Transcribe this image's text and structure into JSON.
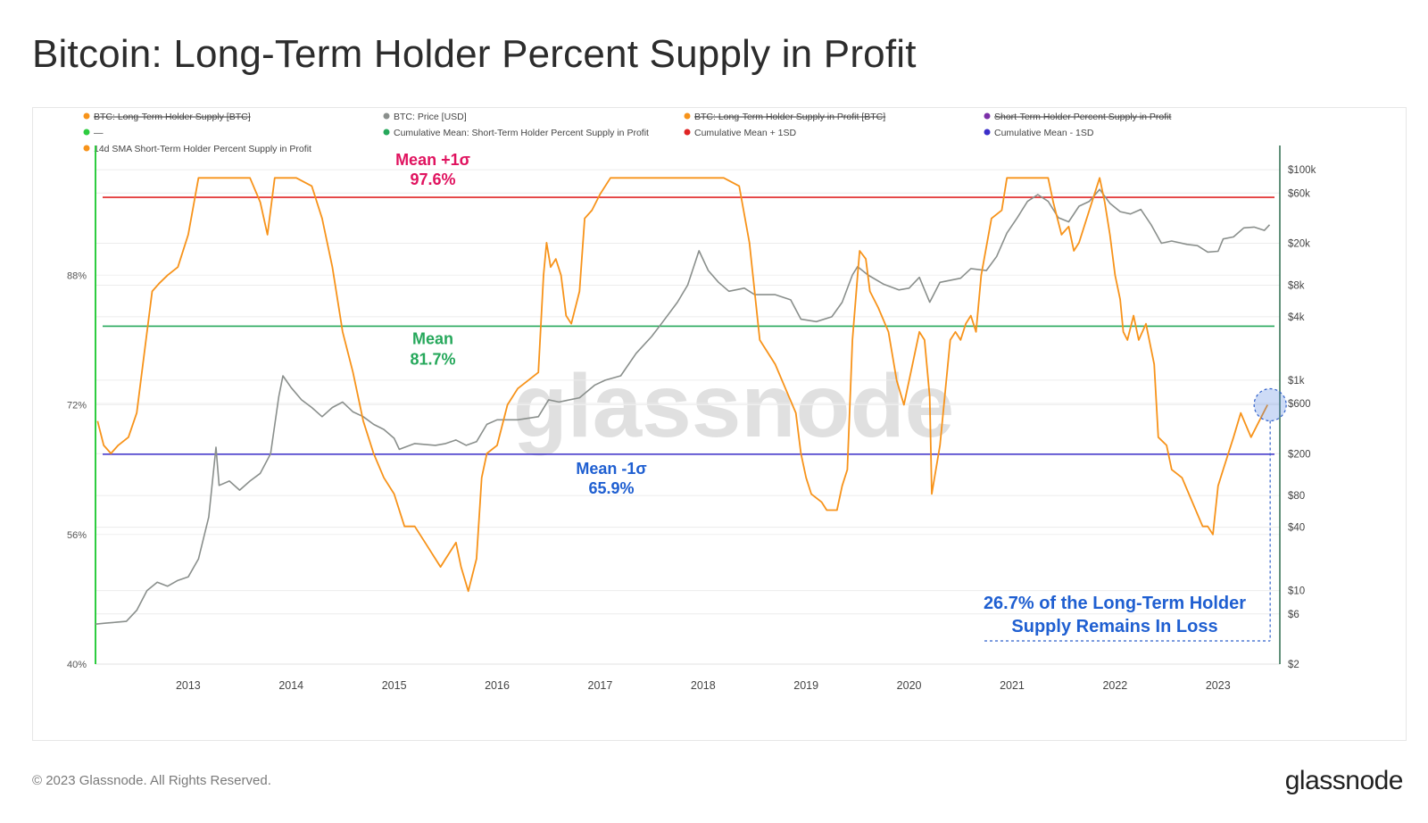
{
  "title": "Bitcoin: Long-Term Holder Percent Supply in Profit",
  "footer": {
    "copyright": "© 2023 Glassnode. All Rights Reserved.",
    "logo": "glassnode"
  },
  "watermark": "glassnode",
  "colors": {
    "lth": "#f7931a",
    "price": "#8a8f8c",
    "mean": "#26a85b",
    "plus1sd": "#e02424",
    "minus1sd": "#3b2fc9",
    "axis_green": "#2ecc40",
    "annotation_blue": "#1f5fd1",
    "plus_label": "#e0135f"
  },
  "chart_data": {
    "type": "line",
    "title": "Bitcoin: Long-Term Holder Percent Supply in Profit",
    "legend": [
      {
        "label": "BTC: Long-Term Holder Supply [BTC]",
        "color": "#f7931a",
        "disabled": true
      },
      {
        "label": "BTC: Price [USD]",
        "color": "#8a8f8c",
        "disabled": false
      },
      {
        "label": "BTC: Long-Term Holder Supply in Profit [BTC]",
        "color": "#f7931a",
        "disabled": true
      },
      {
        "label": "Short-Term Holder Percent Supply in Profit",
        "color": "#7b2fa8",
        "disabled": true
      },
      {
        "label": "—",
        "color": "#2ecc40",
        "disabled": false
      },
      {
        "label": "Cumulative Mean: Short-Term Holder Percent Supply in Profit",
        "color": "#26a85b",
        "disabled": false
      },
      {
        "label": "Cumulative Mean + 1SD",
        "color": "#e02424",
        "disabled": false
      },
      {
        "label": "Cumulative Mean - 1SD",
        "color": "#3b2fc9",
        "disabled": false
      },
      {
        "label": "14d SMA Short-Term Holder Percent Supply in Profit",
        "color": "#f7931a",
        "disabled": false
      }
    ],
    "x_ticks": [
      "2013",
      "2014",
      "2015",
      "2016",
      "2017",
      "2018",
      "2019",
      "2020",
      "2021",
      "2022",
      "2023"
    ],
    "x_range": [
      2012.1,
      2023.6
    ],
    "y_left": {
      "ticks": [
        "88%",
        "72%",
        "56%",
        "40%"
      ],
      "tick_values": [
        88,
        72,
        56,
        40
      ],
      "range": [
        40,
        104
      ]
    },
    "y_right": {
      "scale": "log",
      "ticks": [
        "$100k",
        "$60k",
        "$20k",
        "$8k",
        "$4k",
        "$1k",
        "$600",
        "$200",
        "$80",
        "$40",
        "$10",
        "$6",
        "$2"
      ],
      "tick_values": [
        100000,
        60000,
        20000,
        8000,
        4000,
        1000,
        600,
        200,
        80,
        40,
        10,
        6,
        2
      ],
      "range": [
        2,
        170000
      ]
    },
    "reference_lines": [
      {
        "name": "Mean +1σ",
        "label_line1": "Mean +1σ",
        "label_line2": "97.6%",
        "value": 97.6,
        "color": "#e02424"
      },
      {
        "name": "Mean",
        "label_line1": "Mean",
        "label_line2": "81.7%",
        "value": 81.7,
        "color": "#26a85b"
      },
      {
        "name": "Mean -1σ",
        "label_line1": "Mean -1σ",
        "label_line2": "65.9%",
        "value": 65.9,
        "color": "#3b2fc9"
      }
    ],
    "annotation": {
      "line1": "26.7% of the Long-Term Holder",
      "line2": "Supply Remains In Loss"
    },
    "series": [
      {
        "name": "14d SMA Short-Term Holder Percent Supply in Profit",
        "color": "#f7931a",
        "points": [
          [
            2012.12,
            70
          ],
          [
            2012.18,
            67
          ],
          [
            2012.25,
            66
          ],
          [
            2012.32,
            67
          ],
          [
            2012.42,
            68
          ],
          [
            2012.5,
            71
          ],
          [
            2012.58,
            79
          ],
          [
            2012.65,
            86
          ],
          [
            2012.72,
            87
          ],
          [
            2012.8,
            88
          ],
          [
            2012.9,
            89
          ],
          [
            2013.0,
            93
          ],
          [
            2013.1,
            100
          ],
          [
            2013.2,
            100
          ],
          [
            2013.4,
            100
          ],
          [
            2013.6,
            100
          ],
          [
            2013.7,
            97
          ],
          [
            2013.77,
            93
          ],
          [
            2013.84,
            100
          ],
          [
            2013.9,
            100
          ],
          [
            2014.05,
            100
          ],
          [
            2014.2,
            99
          ],
          [
            2014.3,
            95
          ],
          [
            2014.4,
            89
          ],
          [
            2014.5,
            81
          ],
          [
            2014.6,
            76
          ],
          [
            2014.7,
            70
          ],
          [
            2014.8,
            66
          ],
          [
            2014.9,
            63
          ],
          [
            2015.0,
            61
          ],
          [
            2015.1,
            57
          ],
          [
            2015.2,
            57
          ],
          [
            2015.3,
            55
          ],
          [
            2015.4,
            53
          ],
          [
            2015.45,
            52
          ],
          [
            2015.5,
            53
          ],
          [
            2015.6,
            55
          ],
          [
            2015.65,
            52
          ],
          [
            2015.72,
            49
          ],
          [
            2015.8,
            53
          ],
          [
            2015.85,
            63
          ],
          [
            2015.9,
            66
          ],
          [
            2016.0,
            67
          ],
          [
            2016.1,
            72
          ],
          [
            2016.2,
            74
          ],
          [
            2016.3,
            75
          ],
          [
            2016.4,
            76
          ],
          [
            2016.45,
            88
          ],
          [
            2016.48,
            92
          ],
          [
            2016.52,
            89
          ],
          [
            2016.57,
            90
          ],
          [
            2016.62,
            88
          ],
          [
            2016.67,
            83
          ],
          [
            2016.72,
            82
          ],
          [
            2016.8,
            86
          ],
          [
            2016.85,
            95
          ],
          [
            2016.92,
            96
          ],
          [
            2017.0,
            98
          ],
          [
            2017.1,
            100
          ],
          [
            2017.3,
            100
          ],
          [
            2017.6,
            100
          ],
          [
            2017.9,
            100
          ],
          [
            2018.2,
            100
          ],
          [
            2018.35,
            99
          ],
          [
            2018.45,
            92
          ],
          [
            2018.5,
            86
          ],
          [
            2018.55,
            80
          ],
          [
            2018.65,
            78
          ],
          [
            2018.7,
            77
          ],
          [
            2018.8,
            74
          ],
          [
            2018.9,
            71
          ],
          [
            2018.95,
            66
          ],
          [
            2019.0,
            63
          ],
          [
            2019.05,
            61
          ],
          [
            2019.15,
            60
          ],
          [
            2019.2,
            59
          ],
          [
            2019.3,
            59
          ],
          [
            2019.35,
            62
          ],
          [
            2019.4,
            64
          ],
          [
            2019.45,
            80
          ],
          [
            2019.5,
            88
          ],
          [
            2019.52,
            91
          ],
          [
            2019.58,
            90
          ],
          [
            2019.62,
            86
          ],
          [
            2019.7,
            84
          ],
          [
            2019.8,
            81
          ],
          [
            2019.88,
            75
          ],
          [
            2019.95,
            72
          ],
          [
            2020.0,
            75
          ],
          [
            2020.1,
            81
          ],
          [
            2020.15,
            80
          ],
          [
            2020.2,
            73
          ],
          [
            2020.22,
            61
          ],
          [
            2020.3,
            67
          ],
          [
            2020.4,
            80
          ],
          [
            2020.45,
            81
          ],
          [
            2020.5,
            80
          ],
          [
            2020.55,
            82
          ],
          [
            2020.6,
            83
          ],
          [
            2020.65,
            81
          ],
          [
            2020.7,
            88
          ],
          [
            2020.8,
            95
          ],
          [
            2020.9,
            96
          ],
          [
            2020.95,
            100
          ],
          [
            2021.1,
            100
          ],
          [
            2021.3,
            100
          ],
          [
            2021.35,
            100
          ],
          [
            2021.4,
            97
          ],
          [
            2021.48,
            93
          ],
          [
            2021.55,
            94
          ],
          [
            2021.6,
            91
          ],
          [
            2021.65,
            92
          ],
          [
            2021.75,
            96
          ],
          [
            2021.85,
            100
          ],
          [
            2021.9,
            97
          ],
          [
            2021.95,
            93
          ],
          [
            2022.0,
            88
          ],
          [
            2022.05,
            85
          ],
          [
            2022.08,
            81
          ],
          [
            2022.12,
            80
          ],
          [
            2022.18,
            83
          ],
          [
            2022.23,
            80
          ],
          [
            2022.3,
            82
          ],
          [
            2022.38,
            77
          ],
          [
            2022.42,
            68
          ],
          [
            2022.5,
            67
          ],
          [
            2022.55,
            64
          ],
          [
            2022.65,
            63
          ],
          [
            2022.75,
            60
          ],
          [
            2022.85,
            57
          ],
          [
            2022.9,
            57
          ],
          [
            2022.95,
            56
          ],
          [
            2023.0,
            62
          ],
          [
            2023.05,
            64
          ],
          [
            2023.15,
            68
          ],
          [
            2023.22,
            71
          ],
          [
            2023.32,
            68
          ],
          [
            2023.4,
            70
          ],
          [
            2023.48,
            72
          ]
        ]
      },
      {
        "name": "BTC: Price [USD]",
        "color": "#8a8f8c",
        "points": [
          [
            2012.1,
            4.8
          ],
          [
            2012.2,
            4.9
          ],
          [
            2012.3,
            5
          ],
          [
            2012.4,
            5.1
          ],
          [
            2012.5,
            6.5
          ],
          [
            2012.6,
            10
          ],
          [
            2012.7,
            12
          ],
          [
            2012.8,
            11
          ],
          [
            2012.9,
            12.5
          ],
          [
            2013.0,
            13.5
          ],
          [
            2013.1,
            20
          ],
          [
            2013.2,
            50
          ],
          [
            2013.27,
            230
          ],
          [
            2013.3,
            100
          ],
          [
            2013.4,
            110
          ],
          [
            2013.5,
            90
          ],
          [
            2013.6,
            110
          ],
          [
            2013.7,
            130
          ],
          [
            2013.8,
            200
          ],
          [
            2013.88,
            700
          ],
          [
            2013.92,
            1100
          ],
          [
            2014.0,
            850
          ],
          [
            2014.1,
            650
          ],
          [
            2014.2,
            550
          ],
          [
            2014.3,
            450
          ],
          [
            2014.4,
            550
          ],
          [
            2014.5,
            620
          ],
          [
            2014.6,
            500
          ],
          [
            2014.7,
            450
          ],
          [
            2014.8,
            380
          ],
          [
            2014.9,
            340
          ],
          [
            2015.0,
            280
          ],
          [
            2015.05,
            220
          ],
          [
            2015.2,
            250
          ],
          [
            2015.4,
            240
          ],
          [
            2015.5,
            250
          ],
          [
            2015.6,
            270
          ],
          [
            2015.7,
            240
          ],
          [
            2015.8,
            260
          ],
          [
            2015.9,
            380
          ],
          [
            2016.0,
            420
          ],
          [
            2016.2,
            420
          ],
          [
            2016.4,
            450
          ],
          [
            2016.5,
            650
          ],
          [
            2016.6,
            620
          ],
          [
            2016.8,
            680
          ],
          [
            2016.95,
            900
          ],
          [
            2017.05,
            1000
          ],
          [
            2017.2,
            1100
          ],
          [
            2017.35,
            1800
          ],
          [
            2017.5,
            2600
          ],
          [
            2017.6,
            3500
          ],
          [
            2017.75,
            5500
          ],
          [
            2017.85,
            8000
          ],
          [
            2017.96,
            17000
          ],
          [
            2018.05,
            11000
          ],
          [
            2018.15,
            8500
          ],
          [
            2018.25,
            7000
          ],
          [
            2018.4,
            7500
          ],
          [
            2018.5,
            6500
          ],
          [
            2018.7,
            6500
          ],
          [
            2018.85,
            5800
          ],
          [
            2018.95,
            3800
          ],
          [
            2019.1,
            3600
          ],
          [
            2019.25,
            4000
          ],
          [
            2019.35,
            5500
          ],
          [
            2019.45,
            10000
          ],
          [
            2019.5,
            12000
          ],
          [
            2019.6,
            10000
          ],
          [
            2019.75,
            8200
          ],
          [
            2019.9,
            7200
          ],
          [
            2020.0,
            7500
          ],
          [
            2020.1,
            9500
          ],
          [
            2020.2,
            5500
          ],
          [
            2020.3,
            8500
          ],
          [
            2020.5,
            9300
          ],
          [
            2020.6,
            11500
          ],
          [
            2020.75,
            11000
          ],
          [
            2020.85,
            15000
          ],
          [
            2020.95,
            25000
          ],
          [
            2021.05,
            35000
          ],
          [
            2021.15,
            50000
          ],
          [
            2021.25,
            58000
          ],
          [
            2021.35,
            50000
          ],
          [
            2021.45,
            35000
          ],
          [
            2021.55,
            32000
          ],
          [
            2021.65,
            45000
          ],
          [
            2021.75,
            50000
          ],
          [
            2021.85,
            65000
          ],
          [
            2021.95,
            48000
          ],
          [
            2022.05,
            40000
          ],
          [
            2022.15,
            38000
          ],
          [
            2022.25,
            42000
          ],
          [
            2022.35,
            30000
          ],
          [
            2022.45,
            20000
          ],
          [
            2022.55,
            21000
          ],
          [
            2022.7,
            19500
          ],
          [
            2022.8,
            19000
          ],
          [
            2022.9,
            16500
          ],
          [
            2023.0,
            16800
          ],
          [
            2023.05,
            22000
          ],
          [
            2023.15,
            23000
          ],
          [
            2023.25,
            28000
          ],
          [
            2023.35,
            28500
          ],
          [
            2023.45,
            26500
          ],
          [
            2023.5,
            30000
          ]
        ]
      }
    ]
  }
}
